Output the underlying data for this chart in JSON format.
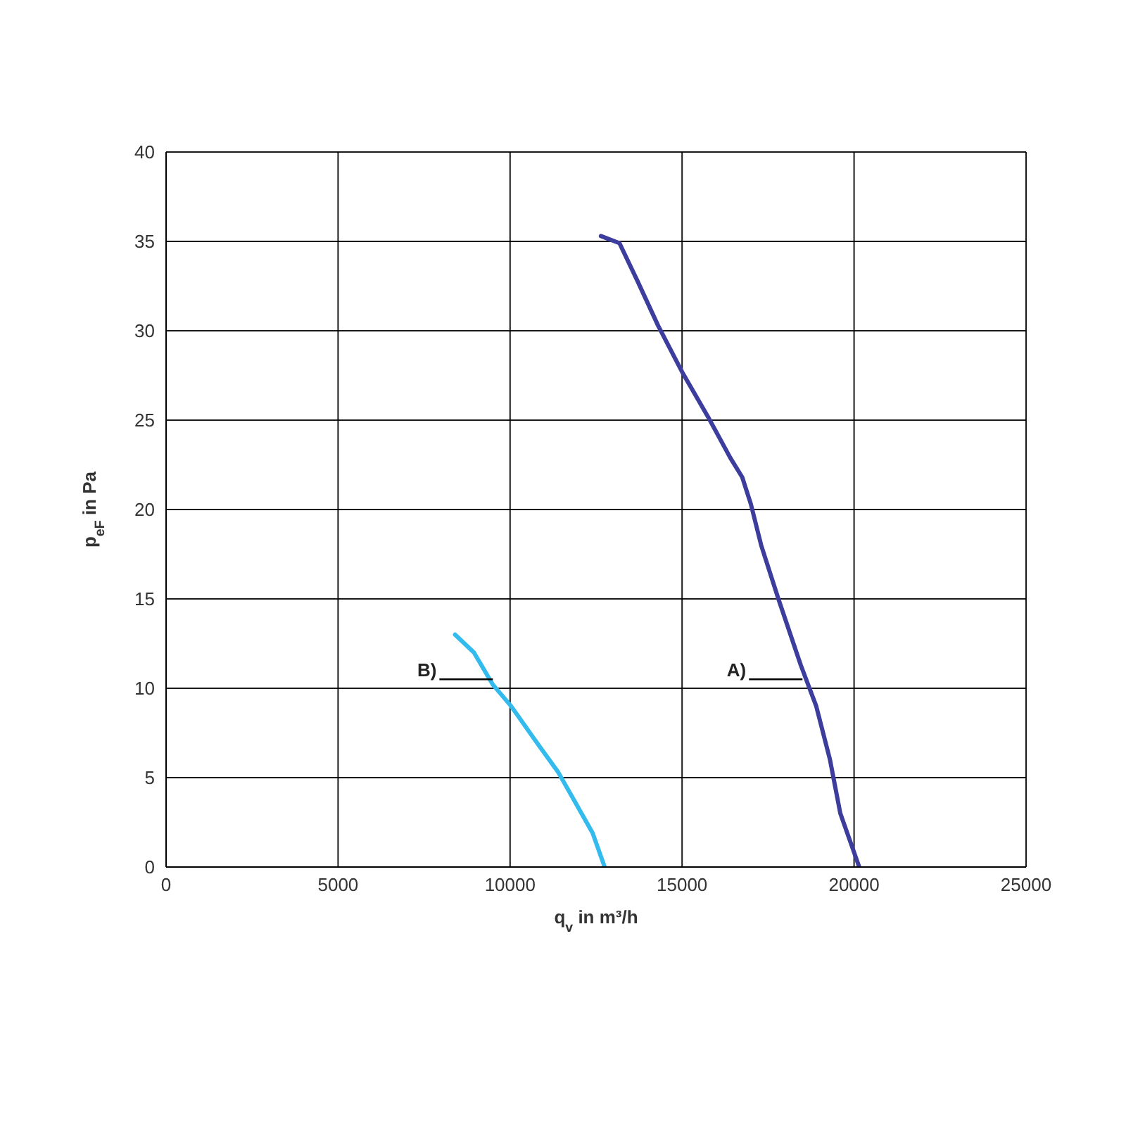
{
  "chart_data": {
    "type": "line",
    "xlabel": "q$_{v}$ in m³/h",
    "ylabel": "p$_{eF}$ in Pa",
    "xlim": [
      0,
      25000
    ],
    "xticks": [
      0,
      5000,
      10000,
      15000,
      20000,
      25000
    ],
    "ylim": [
      0,
      40
    ],
    "yticks": [
      0,
      5,
      10,
      15,
      20,
      25,
      30,
      35,
      40
    ],
    "grid": true,
    "marker": "none",
    "line_style": "solid",
    "series": [
      {
        "color": "#3d3d9e",
        "x": [
          12640,
          13180,
          13700,
          14300,
          15000,
          15750,
          16400,
          16750,
          17000,
          17300,
          17800,
          18450,
          18900,
          19300,
          19600,
          20150
        ],
        "values": [
          35.3,
          34.9,
          32.8,
          30.3,
          27.7,
          25.2,
          22.9,
          21.8,
          20.3,
          18.0,
          15.0,
          11.3,
          9.0,
          6.0,
          3.0,
          0
        ]
      },
      {
        "color": "#33bbee",
        "x": [
          8400,
          8950,
          9500,
          10030,
          10800,
          11400,
          11900,
          12400,
          12750
        ],
        "values": [
          13.0,
          12.0,
          10.2,
          9.0,
          6.9,
          5.3,
          3.6,
          1.9,
          0
        ]
      }
    ],
    "annotations": [
      {
        "text": "A)",
        "x": 18500,
        "y": 10.5
      },
      {
        "text": "B)",
        "x": 9500,
        "y": 10.5
      }
    ]
  }
}
